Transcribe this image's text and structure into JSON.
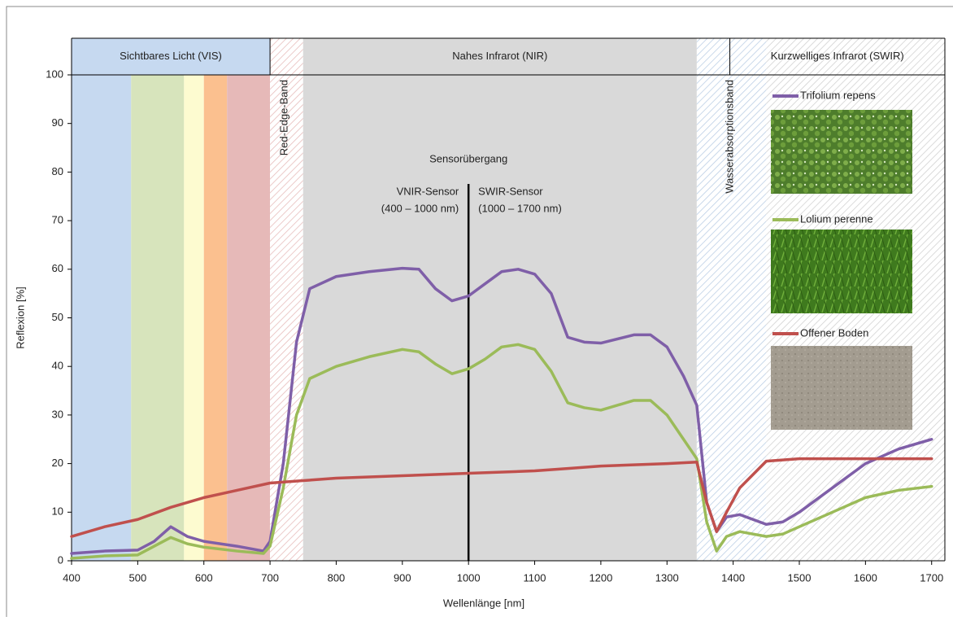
{
  "chart_data": {
    "type": "line",
    "x_label": "Wellenlänge [nm]",
    "y_label": "Reflexion [%]",
    "xlim": [
      400,
      1720
    ],
    "ylim": [
      0,
      100
    ],
    "xticks": [
      400,
      500,
      600,
      700,
      800,
      900,
      1000,
      1100,
      1200,
      1300,
      1400,
      1500,
      1600,
      1700
    ],
    "yticks": [
      0,
      10,
      20,
      30,
      40,
      50,
      60,
      70,
      80,
      90,
      100
    ],
    "header_bands": [
      {
        "label": "Sichtbares Licht (VIS)",
        "range": [
          400,
          700
        ],
        "color": "#c6d9f0"
      },
      {
        "label": "Nahes Infrarot (NIR)",
        "range": [
          700,
          1395
        ]
      },
      {
        "label": "Kurzwelliges Infrarot (SWIR)",
        "range": [
          1395,
          1720
        ]
      }
    ],
    "regions": [
      {
        "range": [
          400,
          490
        ],
        "fill": "#c6d9f0"
      },
      {
        "range": [
          490,
          570
        ],
        "fill": "#d7e4bc"
      },
      {
        "range": [
          570,
          600
        ],
        "fill": "#fdfbd0"
      },
      {
        "range": [
          600,
          635
        ],
        "fill": "#fbc08f"
      },
      {
        "range": [
          635,
          700
        ],
        "fill": "#e6b9b8"
      },
      {
        "range": [
          700,
          750
        ],
        "fill": "hatch-red"
      },
      {
        "range": [
          750,
          1345
        ],
        "fill": "#d9d9d9"
      },
      {
        "range": [
          1345,
          1450
        ],
        "fill": "hatch-blue"
      },
      {
        "range": [
          1450,
          1720
        ],
        "fill": "hatch-grey"
      }
    ],
    "annotations": {
      "red_edge": "Red-Edge-Band",
      "water": "Wasserabsorptionsband",
      "transition": "Sensorübergang",
      "vnir": "VNIR-Sensor",
      "vnir_range": "(400 – 1000 nm)",
      "swir": "SWIR-Sensor",
      "swir_range": "(1000 – 1700 nm)",
      "sensor_divider": 1000
    },
    "series": [
      {
        "name": "Trifolium repens",
        "color": "#7f5fa8",
        "x": [
          400,
          450,
          500,
          525,
          550,
          575,
          600,
          650,
          690,
          700,
          720,
          740,
          760,
          800,
          850,
          900,
          925,
          950,
          975,
          1000,
          1025,
          1050,
          1075,
          1100,
          1125,
          1150,
          1175,
          1200,
          1250,
          1275,
          1300,
          1325,
          1345,
          1360,
          1375,
          1390,
          1410,
          1450,
          1475,
          1500,
          1550,
          1600,
          1650,
          1700
        ],
        "values": [
          1.5,
          2,
          2.2,
          4,
          7,
          5,
          4,
          3,
          2,
          4,
          20,
          45,
          56,
          58.5,
          59.5,
          60.2,
          60,
          56,
          53.5,
          54.5,
          57,
          59.5,
          60,
          59,
          55,
          46,
          45,
          44.8,
          46.5,
          46.5,
          44,
          38,
          32,
          12,
          6,
          9,
          9.5,
          7.5,
          8,
          10,
          15,
          20,
          23,
          25
        ]
      },
      {
        "name": "Lolium perenne",
        "color": "#9bbb59",
        "x": [
          400,
          450,
          500,
          525,
          550,
          575,
          600,
          650,
          690,
          700,
          720,
          740,
          760,
          800,
          850,
          900,
          925,
          950,
          975,
          1000,
          1025,
          1050,
          1075,
          1100,
          1125,
          1150,
          1175,
          1200,
          1250,
          1275,
          1300,
          1325,
          1345,
          1360,
          1375,
          1390,
          1410,
          1450,
          1475,
          1500,
          1550,
          1600,
          1650,
          1700
        ],
        "values": [
          0.5,
          1,
          1.2,
          3,
          4.8,
          3.5,
          2.8,
          2,
          1.5,
          3,
          15,
          30,
          37.5,
          40,
          42,
          43.5,
          43,
          40.5,
          38.5,
          39.5,
          41.5,
          44,
          44.5,
          43.5,
          39,
          32.5,
          31.5,
          31,
          33,
          33,
          30,
          25,
          21,
          8,
          2,
          5,
          6,
          5,
          5.5,
          7,
          10,
          13,
          14.5,
          15.3
        ]
      },
      {
        "name": "Offener Boden",
        "color": "#c0504d",
        "x": [
          400,
          450,
          500,
          550,
          600,
          650,
          700,
          750,
          800,
          900,
          1000,
          1100,
          1150,
          1200,
          1300,
          1345,
          1360,
          1375,
          1390,
          1410,
          1450,
          1500,
          1600,
          1700
        ],
        "values": [
          5,
          7,
          8.5,
          11,
          13,
          14.5,
          16,
          16.5,
          17,
          17.5,
          18,
          18.5,
          19,
          19.5,
          20,
          20.3,
          12,
          6,
          10,
          15,
          20.5,
          21,
          21,
          21
        ]
      }
    ]
  }
}
